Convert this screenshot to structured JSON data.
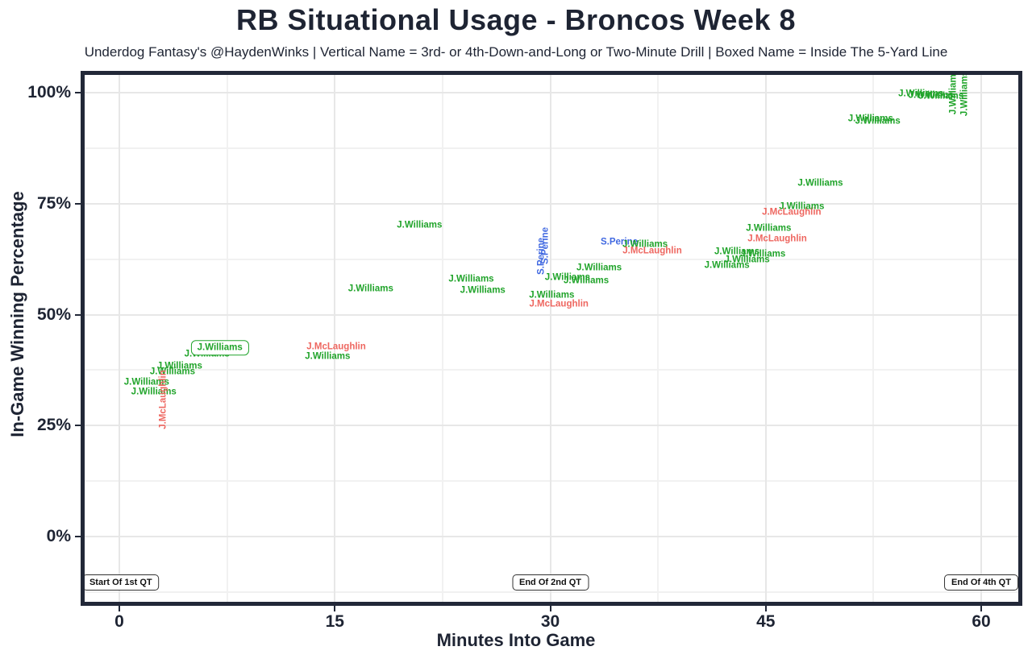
{
  "page": {
    "title": "RB Situational Usage - Broncos Week 8",
    "subtitle": "Underdog Fantasy's @HaydenWinks | Vertical Name = 3rd- or 4th-Down-and-Long or Two-Minute Drill | Boxed Name = Inside The 5-Yard Line"
  },
  "chart_data": {
    "type": "scatter",
    "title": "RB Situational Usage - Broncos Week 8",
    "subtitle": "Underdog Fantasy's @HaydenWinks | Vertical Name = 3rd- or 4th-Down-and-Long or Two-Minute Drill | Boxed Name = Inside The 5-Yard Line",
    "xlabel": "Minutes Into Game",
    "ylabel": "In-Game Winning Percentage",
    "xlim": [
      -2.7,
      62.9
    ],
    "ylim": [
      -15.6,
      104.9
    ],
    "grid": "on",
    "legend_position": "none",
    "point_encoding": "player name text; color = player; vertical = 3rd/4th-and-long or two-minute drill; boxed = inside the 5-yard line",
    "x_ticks": [
      {
        "value": 0,
        "label": "0"
      },
      {
        "value": 15,
        "label": "15"
      },
      {
        "value": 30,
        "label": "30"
      },
      {
        "value": 45,
        "label": "45"
      },
      {
        "value": 60,
        "label": "60"
      }
    ],
    "y_ticks": [
      {
        "value": 0,
        "label": "0%"
      },
      {
        "value": 25,
        "label": "25%"
      },
      {
        "value": 50,
        "label": "50%"
      },
      {
        "value": 75,
        "label": "75%"
      },
      {
        "value": 100,
        "label": "100%"
      }
    ],
    "grid_minor_x": [
      7.5,
      22.5,
      37.5,
      52.5
    ],
    "grid_minor_y": [
      -12.5,
      12.5,
      37.5,
      62.5,
      87.5
    ],
    "colors": {
      "green": "#21A42B",
      "red": "#EE6760",
      "blue": "#4169E1",
      "ink": "#1E2433",
      "grid_major": "#E7E7E7",
      "grid_minor": "#F1F1F1",
      "border": "#222838"
    },
    "points": [
      {
        "x": 1.9,
        "y": 34.7,
        "label": "J.Williams",
        "color": "green"
      },
      {
        "x": 2.4,
        "y": 32.5,
        "label": "J.Williams",
        "color": "green"
      },
      {
        "x": 3.7,
        "y": 37.0,
        "label": "J.Williams",
        "color": "green"
      },
      {
        "x": 4.2,
        "y": 38.3,
        "label": "J.Williams",
        "color": "green"
      },
      {
        "x": 3.1,
        "y": 30.9,
        "label": "J.McLaughlin",
        "color": "red",
        "vertical": true
      },
      {
        "x": 6.1,
        "y": 41.0,
        "label": "J.Williams",
        "color": "green"
      },
      {
        "x": 7.0,
        "y": 42.5,
        "label": "J.Williams",
        "color": "green",
        "boxed": true
      },
      {
        "x": 15.1,
        "y": 42.7,
        "label": "J.McLaughlin",
        "color": "red"
      },
      {
        "x": 14.5,
        "y": 40.5,
        "label": "J.Williams",
        "color": "green"
      },
      {
        "x": 17.5,
        "y": 55.8,
        "label": "J.Williams",
        "color": "green"
      },
      {
        "x": 20.9,
        "y": 70.1,
        "label": "J.Williams",
        "color": "green"
      },
      {
        "x": 24.5,
        "y": 57.9,
        "label": "J.Williams",
        "color": "green"
      },
      {
        "x": 25.3,
        "y": 55.4,
        "label": "J.Williams",
        "color": "green"
      },
      {
        "x": 30.1,
        "y": 54.3,
        "label": "J.Williams",
        "color": "green"
      },
      {
        "x": 30.6,
        "y": 52.3,
        "label": "J.McLaughlin",
        "color": "red"
      },
      {
        "x": 29.4,
        "y": 63.2,
        "label": "S.Perine",
        "color": "blue",
        "vertical": true
      },
      {
        "x": 29.7,
        "y": 65.5,
        "label": "S.Perine",
        "color": "blue",
        "vertical": true
      },
      {
        "x": 31.2,
        "y": 58.3,
        "label": "J.Williams",
        "color": "green"
      },
      {
        "x": 32.5,
        "y": 57.6,
        "label": "J.Williams",
        "color": "green"
      },
      {
        "x": 33.4,
        "y": 60.5,
        "label": "J.Williams",
        "color": "green"
      },
      {
        "x": 34.8,
        "y": 66.3,
        "label": "S.Perine",
        "color": "blue"
      },
      {
        "x": 36.6,
        "y": 65.7,
        "label": "J.Williams",
        "color": "green"
      },
      {
        "x": 37.1,
        "y": 64.3,
        "label": "J.McLaughlin",
        "color": "red"
      },
      {
        "x": 42.3,
        "y": 61.0,
        "label": "J.Williams",
        "color": "green"
      },
      {
        "x": 43.0,
        "y": 64.1,
        "label": "J.Williams",
        "color": "green"
      },
      {
        "x": 43.7,
        "y": 62.3,
        "label": "J.Williams",
        "color": "green"
      },
      {
        "x": 44.8,
        "y": 63.6,
        "label": "J.Williams",
        "color": "green"
      },
      {
        "x": 45.2,
        "y": 69.4,
        "label": "J.Williams",
        "color": "green"
      },
      {
        "x": 45.8,
        "y": 67.0,
        "label": "J.McLaughlin",
        "color": "red"
      },
      {
        "x": 46.8,
        "y": 73.0,
        "label": "J.McLaughlin",
        "color": "red"
      },
      {
        "x": 47.5,
        "y": 74.3,
        "label": "J.Williams",
        "color": "green"
      },
      {
        "x": 48.8,
        "y": 79.5,
        "label": "J.Williams",
        "color": "green"
      },
      {
        "x": 52.3,
        "y": 94.1,
        "label": "J.Williams",
        "color": "green"
      },
      {
        "x": 52.8,
        "y": 93.5,
        "label": "J.Williams",
        "color": "green"
      },
      {
        "x": 55.8,
        "y": 99.7,
        "label": "J.Williams",
        "color": "green"
      },
      {
        "x": 56.5,
        "y": 99.3,
        "label": "J.Williams",
        "color": "green"
      },
      {
        "x": 57.2,
        "y": 99.1,
        "label": "J.Williams",
        "color": "green"
      },
      {
        "x": 58.1,
        "y": 100.3,
        "label": "J.Williams",
        "color": "green",
        "vertical": true
      },
      {
        "x": 58.9,
        "y": 99.8,
        "label": "J.Williams",
        "color": "green",
        "vertical": true
      }
    ],
    "annotations": [
      {
        "x": 0.1,
        "y": -10.3,
        "label": "Start Of 1st QT"
      },
      {
        "x": 30.0,
        "y": -10.3,
        "label": "End Of 2nd QT"
      },
      {
        "x": 60.0,
        "y": -10.3,
        "label": "End Of 4th QT"
      }
    ]
  }
}
